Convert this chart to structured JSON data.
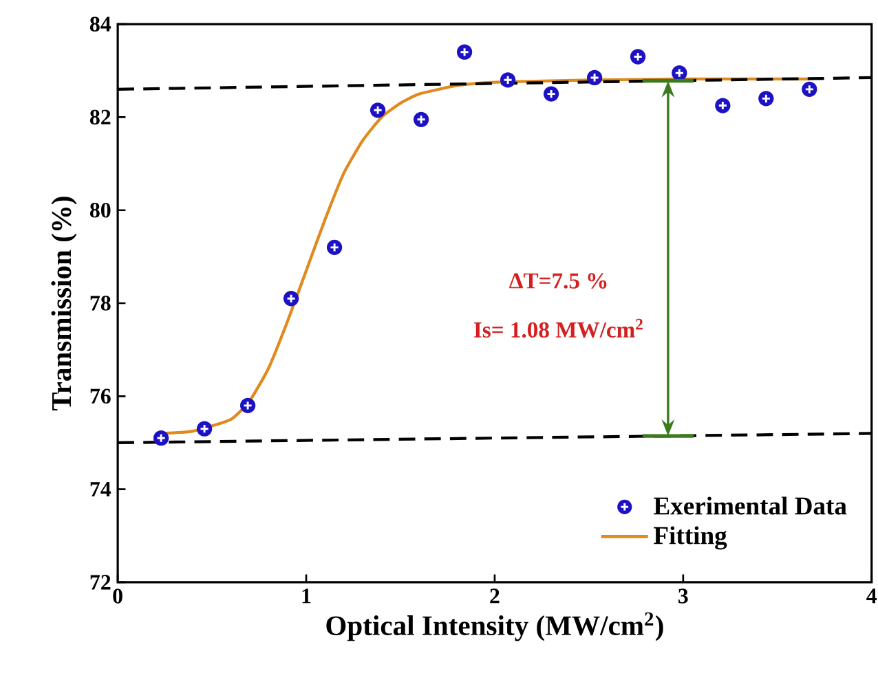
{
  "chart_data": {
    "type": "scatter",
    "xlabel": "Optical Intensity (MW/cm$^{2}$)",
    "ylabel": "Transmission (%)",
    "xlim": [
      0,
      4
    ],
    "ylim": [
      72,
      84
    ],
    "xticks": [
      0,
      1,
      2,
      3,
      4
    ],
    "yticks": [
      72,
      74,
      76,
      78,
      80,
      82,
      84
    ],
    "legend": "bottom right",
    "grid": false,
    "series": [
      {
        "name": "Exerimental Data",
        "marker": "circle",
        "color": "#1c12c4",
        "x": [
          0.23,
          0.46,
          0.69,
          0.92,
          1.15,
          1.38,
          1.61,
          1.84,
          2.07,
          2.3,
          2.53,
          2.76,
          2.98,
          3.21,
          3.44,
          3.67
        ],
        "values": [
          75.1,
          75.3,
          75.8,
          78.1,
          79.2,
          82.15,
          81.95,
          83.4,
          82.8,
          82.5,
          82.85,
          83.3,
          82.95,
          82.25,
          82.4,
          82.6
        ]
      },
      {
        "name": "Fitting",
        "type": "line",
        "marker": "none",
        "line_style": "solid",
        "color": "#e08a1e",
        "x": [
          0.23,
          0.4,
          0.6,
          0.7,
          0.8,
          0.9,
          1.0,
          1.1,
          1.2,
          1.3,
          1.4,
          1.5,
          1.6,
          1.8,
          2.0,
          2.5,
          3.0,
          3.67
        ],
        "values": [
          75.2,
          75.25,
          75.5,
          75.9,
          76.6,
          77.6,
          78.7,
          79.8,
          80.8,
          81.5,
          82.0,
          82.3,
          82.5,
          82.68,
          82.75,
          82.8,
          82.82,
          82.82
        ]
      },
      {
        "type": "line",
        "marker": "none",
        "line_style": "dashed",
        "color": "#000000",
        "x": [
          0,
          4
        ],
        "values": [
          82.6,
          82.85
        ]
      },
      {
        "type": "line",
        "marker": "none",
        "line_style": "dashed",
        "color": "#000000",
        "x": [
          0,
          4
        ],
        "values": [
          75.0,
          75.2
        ]
      }
    ],
    "annotations": [
      "ΔT=7.5 %",
      "Is= 1.08 MW/cm$^{2}$"
    ]
  }
}
